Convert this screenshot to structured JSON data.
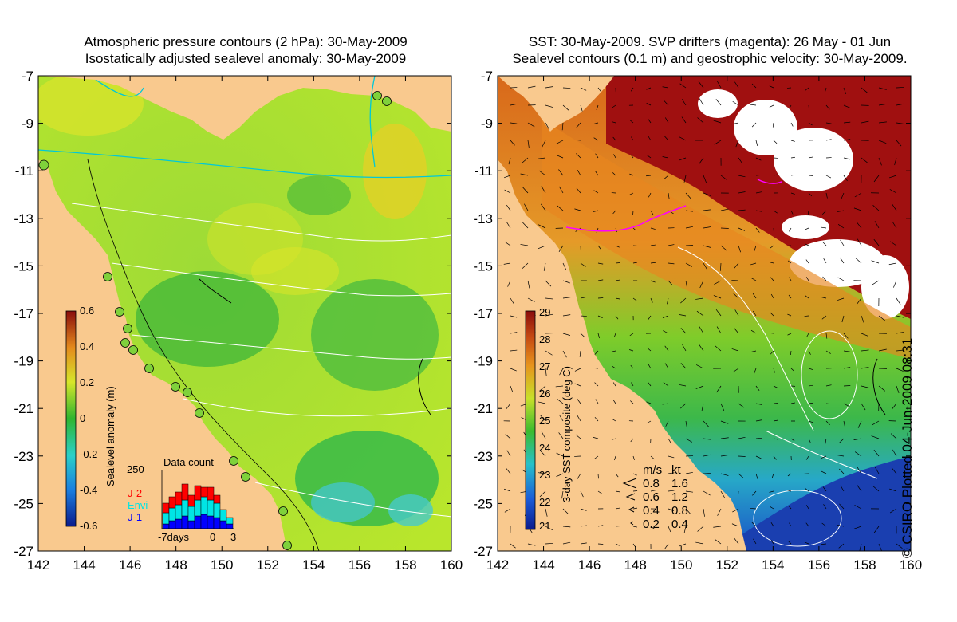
{
  "left_panel": {
    "title_line1": "Atmospheric pressure contours (2 hPa): 30-May-2009",
    "title_line2": "Isostatically adjusted sealevel anomaly: 30-May-2009",
    "colorbar_label": "Sealevel anomaly (m)",
    "colorbar_ticks": [
      "0.6",
      "0.4",
      "0.2",
      "0",
      "-0.2",
      "-0.4",
      "-0.6"
    ],
    "colorbar_range": [
      -0.6,
      0.6
    ],
    "inset": {
      "title": "Data count",
      "ymax_label": "250",
      "xlabel_left": "-7days",
      "xlabel_mid": "0",
      "xlabel_right": "3",
      "legend": [
        {
          "label": "J-2",
          "color": "#ff0000"
        },
        {
          "label": "Envi",
          "color": "#00e5e5"
        },
        {
          "label": "J-1",
          "color": "#0000ff"
        }
      ]
    },
    "colors": {
      "ocean": "#a8e62e",
      "land": "#f9c98e",
      "pressure_contour": "#00c8d8",
      "tide_gauge": "#7fd13b"
    }
  },
  "right_panel": {
    "title_line1": "SST: 30-May-2009. SVP drifters (magenta): 26 May - 01 Jun",
    "title_line2": "Sealevel contours (0.1 m) and geostrophic velocity: 30-May-2009.",
    "colorbar_label": "3-day SST composite (deg C)",
    "colorbar_ticks": [
      "29",
      "28",
      "27",
      "26",
      "25",
      "24",
      "23",
      "22",
      "21"
    ],
    "colorbar_range": [
      21,
      29
    ],
    "velocity_legend": {
      "header_ms": "m/s",
      "header_kt": "kt",
      "rows": [
        {
          "ms": "0.8",
          "kt": "1.6"
        },
        {
          "ms": "0.6",
          "kt": "1.2"
        },
        {
          "ms": "0.4",
          "kt": "0.8"
        },
        {
          "ms": "0.2",
          "kt": "0.4"
        }
      ]
    },
    "credit": "© CSIRO Plotted 04-Jun-2009 08:31",
    "colors": {
      "land": "#f9c98e",
      "warm": "#a01010",
      "cloud": "#ffffff",
      "cool": "#1a55c8",
      "drifter": "#ff00ff"
    }
  },
  "axes": {
    "x_ticks": [
      "142",
      "144",
      "146",
      "148",
      "150",
      "152",
      "154",
      "156",
      "158",
      "160"
    ],
    "y_ticks": [
      "-7",
      "-9",
      "-11",
      "-13",
      "-15",
      "-17",
      "-19",
      "-21",
      "-23",
      "-25",
      "-27"
    ]
  }
}
